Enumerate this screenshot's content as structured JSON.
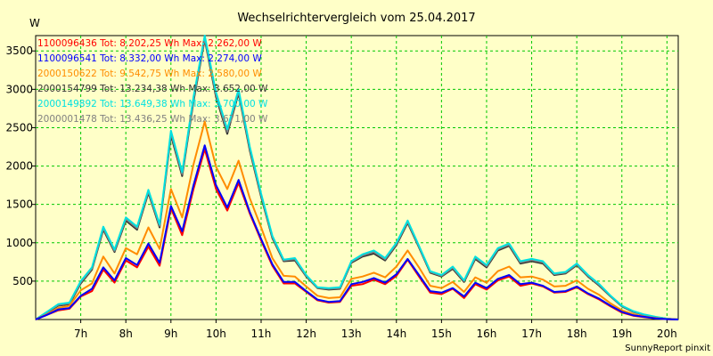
{
  "chart_data": {
    "type": "line",
    "title": "Wechselrichtervergleich vom 25.04.2017",
    "ylabel": "W",
    "xlabel": "",
    "footer": "SunnyReport pinxit",
    "ylim": [
      0,
      3700
    ],
    "xlim": [
      6.0,
      20.25
    ],
    "yticks": [
      500,
      1000,
      1500,
      2000,
      2500,
      3000,
      3500
    ],
    "xticks": [
      7,
      8,
      9,
      10,
      11,
      12,
      13,
      14,
      15,
      16,
      17,
      18,
      19,
      20
    ],
    "xtick_labels": [
      "7h",
      "8h",
      "9h",
      "10h",
      "11h",
      "12h",
      "13h",
      "14h",
      "15h",
      "16h",
      "17h",
      "18h",
      "19h",
      "20h"
    ],
    "grid": true,
    "legend_position": "top-left",
    "x": [
      6.0,
      6.25,
      6.5,
      6.75,
      7.0,
      7.25,
      7.5,
      7.75,
      8.0,
      8.25,
      8.5,
      8.75,
      9.0,
      9.25,
      9.5,
      9.75,
      10.0,
      10.25,
      10.5,
      10.75,
      11.0,
      11.25,
      11.5,
      11.75,
      12.0,
      12.25,
      12.5,
      12.75,
      13.0,
      13.25,
      13.5,
      13.75,
      14.0,
      14.25,
      14.5,
      14.75,
      15.0,
      15.25,
      15.5,
      15.75,
      16.0,
      16.25,
      16.5,
      16.75,
      17.0,
      17.25,
      17.5,
      17.75,
      18.0,
      18.25,
      18.5,
      18.75,
      19.0,
      19.25,
      19.5,
      19.75,
      20.0,
      20.25
    ],
    "series": [
      {
        "name": "1100096436",
        "legend_text": "1100096436 Tot: 8.202,25 Wh Max: 2.262,00 W",
        "color": "#ff0000",
        "values": [
          0,
          60,
          120,
          140,
          300,
          370,
          650,
          480,
          770,
          680,
          950,
          700,
          1450,
          1100,
          1700,
          2220,
          1700,
          1420,
          1780,
          1380,
          1030,
          700,
          470,
          470,
          360,
          250,
          220,
          230,
          440,
          460,
          520,
          460,
          570,
          780,
          560,
          350,
          330,
          400,
          280,
          460,
          390,
          510,
          560,
          440,
          470,
          430,
          350,
          360,
          420,
          330,
          260,
          170,
          90,
          50,
          30,
          15,
          5,
          0
        ]
      },
      {
        "name": "1100096541",
        "legend_text": "1100096541 Tot: 8.332,00 Wh Max: 2.274,00 W",
        "color": "#0000ff",
        "values": [
          0,
          60,
          130,
          150,
          310,
          400,
          680,
          510,
          800,
          710,
          990,
          740,
          1480,
          1150,
          1750,
          2270,
          1750,
          1460,
          1820,
          1400,
          1050,
          720,
          490,
          490,
          370,
          260,
          230,
          240,
          460,
          490,
          540,
          480,
          590,
          790,
          580,
          370,
          350,
          410,
          300,
          480,
          410,
          530,
          580,
          460,
          480,
          440,
          360,
          370,
          430,
          340,
          270,
          180,
          100,
          55,
          35,
          15,
          5,
          0
        ]
      },
      {
        "name": "2000150622",
        "legend_text": "2000150622 Tot: 9.542,75 Wh Max: 2.580,00 W",
        "color": "#ff8c00",
        "values": [
          0,
          70,
          150,
          180,
          380,
          470,
          820,
          600,
          930,
          850,
          1200,
          920,
          1700,
          1330,
          2020,
          2580,
          1990,
          1700,
          2070,
          1580,
          1200,
          800,
          570,
          560,
          430,
          310,
          280,
          290,
          530,
          560,
          610,
          550,
          690,
          900,
          680,
          440,
          410,
          490,
          360,
          550,
          480,
          630,
          690,
          550,
          560,
          520,
          430,
          440,
          510,
          400,
          320,
          210,
          120,
          70,
          40,
          20,
          5,
          0
        ]
      },
      {
        "name": "2000154799",
        "legend_text": "2000154799 Tot: 13.234,38 Wh Max: 3.652,00 W",
        "color": "#333333",
        "values": [
          0,
          90,
          180,
          200,
          470,
          650,
          1170,
          880,
          1290,
          1170,
          1650,
          1200,
          2400,
          1870,
          2840,
          3650,
          2900,
          2420,
          2950,
          2200,
          1600,
          1060,
          760,
          770,
          560,
          410,
          390,
          400,
          740,
          820,
          860,
          770,
          970,
          1260,
          940,
          610,
          560,
          660,
          490,
          790,
          680,
          900,
          960,
          730,
          760,
          730,
          580,
          600,
          710,
          560,
          440,
          300,
          170,
          100,
          60,
          30,
          10,
          0
        ]
      },
      {
        "name": "2000149892",
        "legend_text": "2000149892 Tot: 13.649,38 Wh Max: 3.700,00 W",
        "color": "#00e0e0",
        "values": [
          0,
          100,
          200,
          220,
          500,
          680,
          1210,
          910,
          1330,
          1210,
          1690,
          1240,
          2460,
          1920,
          2900,
          3700,
          2960,
          2480,
          3000,
          2250,
          1640,
          1090,
          780,
          800,
          580,
          420,
          410,
          420,
          760,
          850,
          900,
          800,
          1000,
          1290,
          960,
          630,
          580,
          690,
          510,
          820,
          710,
          930,
          990,
          760,
          790,
          760,
          600,
          620,
          730,
          580,
          460,
          310,
          180,
          110,
          65,
          35,
          10,
          0
        ]
      },
      {
        "name": "2000001478",
        "legend_text": "2000001478 Tot: 13.436,25 Wh Max: 3.671,00 W",
        "color": "#808080",
        "values": [
          0,
          95,
          190,
          210,
          485,
          665,
          1190,
          895,
          1310,
          1190,
          1670,
          1220,
          2430,
          1895,
          2870,
          3671,
          2930,
          2450,
          2975,
          2225,
          1620,
          1075,
          770,
          785,
          570,
          415,
          400,
          410,
          750,
          835,
          880,
          785,
          985,
          1275,
          950,
          620,
          570,
          675,
          500,
          805,
          695,
          915,
          975,
          745,
          775,
          745,
          590,
          610,
          720,
          570,
          450,
          305,
          175,
          105,
          62,
          32,
          10,
          0
        ]
      }
    ]
  }
}
